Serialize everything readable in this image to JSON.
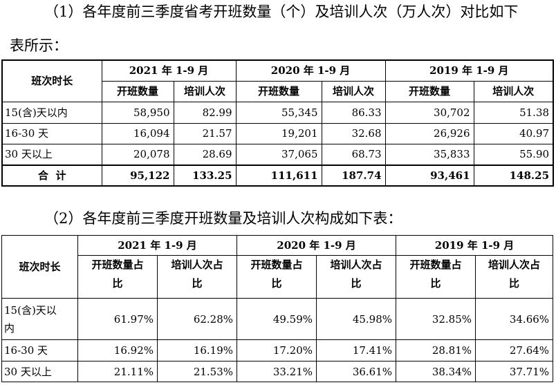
{
  "intro_line1": "（1）各年度前三季度省考开班数量（个）及培训人次（万人次）对比如下",
  "intro_line2": "表所示：",
  "table1": {
    "corner": "班次时长",
    "years": [
      "2021 年 1-9 月",
      "2020 年 1-9 月",
      "2019 年 1-9 月"
    ],
    "subheaders": [
      "开班数量",
      "培训人次"
    ],
    "rows": [
      {
        "label": "15(含)天以内",
        "values": [
          "58,950",
          "82.99",
          "55,345",
          "86.33",
          "30,702",
          "51.38"
        ]
      },
      {
        "label": "16-30 天",
        "values": [
          "16,094",
          "21.57",
          "19,201",
          "32.68",
          "26,926",
          "40.97"
        ]
      },
      {
        "label": "30 天以上",
        "values": [
          "20,078",
          "28.69",
          "37,065",
          "68.73",
          "35,833",
          "55.90"
        ]
      }
    ],
    "total": {
      "label": "合  计",
      "values": [
        "95,122",
        "133.25",
        "111,611",
        "187.74",
        "93,461",
        "148.25"
      ]
    }
  },
  "intro2": "（2）各年度前三季度开班数量及培训人次构成如下表：",
  "table2": {
    "corner": "班次时长",
    "years": [
      "2021 年 1-9 月",
      "2020 年 1-9 月",
      "2019 年 1-9 月"
    ],
    "subheaders": [
      [
        "开班数量占",
        "比"
      ],
      [
        "培训人次占",
        "比"
      ]
    ],
    "rows": [
      {
        "label": [
          "15(含)天以",
          "内"
        ],
        "values": [
          "61.97%",
          "62.28%",
          "49.59%",
          "45.98%",
          "32.85%",
          "34.66%"
        ]
      },
      {
        "label": [
          "16-30 天"
        ],
        "values": [
          "16.92%",
          "16.19%",
          "17.20%",
          "17.41%",
          "28.81%",
          "27.64%"
        ]
      },
      {
        "label": [
          "30 天以上"
        ],
        "values": [
          "21.11%",
          "21.53%",
          "33.21%",
          "36.61%",
          "38.34%",
          "37.71%"
        ]
      }
    ]
  }
}
